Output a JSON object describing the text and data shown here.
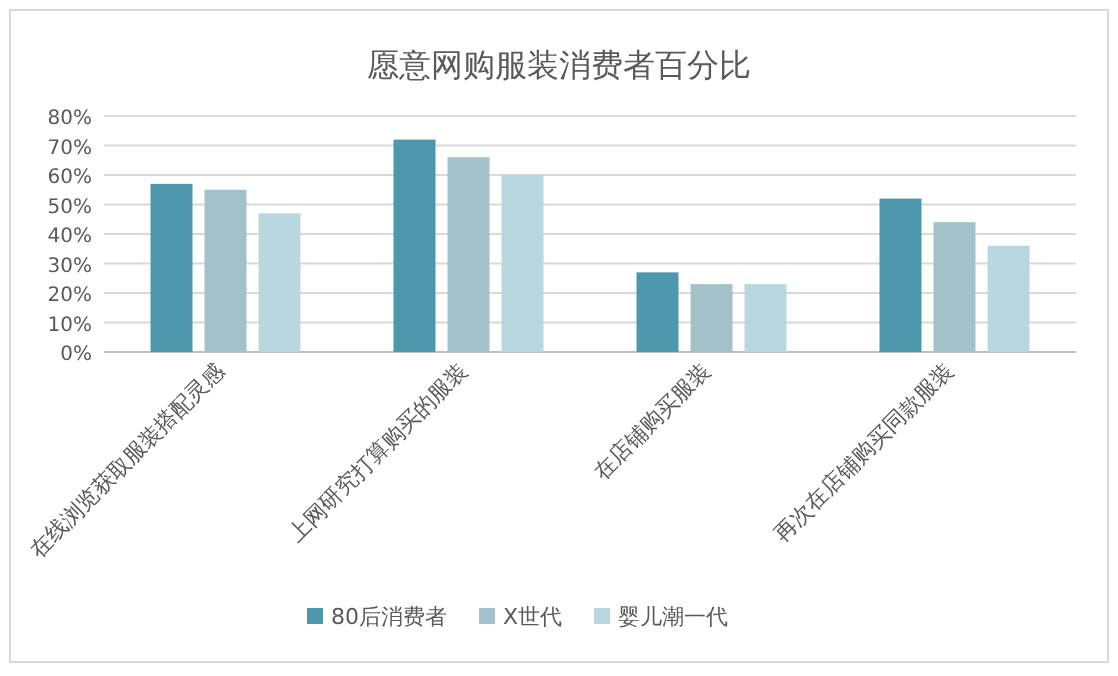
{
  "chart_data": {
    "type": "bar",
    "title": "愿意网购服装消费者百分比",
    "categories": [
      "在线浏览获取服装搭配灵感",
      "上网研究打算购买的服装",
      "在店铺购买服装",
      "再次在店铺购买同款服装"
    ],
    "series": [
      {
        "name": "80后消费者",
        "color": "#4e98ad",
        "values": [
          57,
          72,
          27,
          52
        ]
      },
      {
        "name": "X世代",
        "color": "#a3c1c9",
        "values": [
          55,
          66,
          23,
          44
        ]
      },
      {
        "name": "婴儿潮一代",
        "color": "#b9d7de",
        "values": [
          47,
          60,
          23,
          36
        ]
      }
    ],
    "ylim": [
      0,
      80
    ],
    "yticks": [
      {
        "value": 0,
        "label": "0%"
      },
      {
        "value": 10,
        "label": "10%"
      },
      {
        "value": 20,
        "label": "20%"
      },
      {
        "value": 30,
        "label": "30%"
      },
      {
        "value": 40,
        "label": "40%"
      },
      {
        "value": 50,
        "label": "50%"
      },
      {
        "value": 60,
        "label": "60%"
      },
      {
        "value": 70,
        "label": "70%"
      },
      {
        "value": 80,
        "label": "80%"
      }
    ],
    "grid": "y",
    "legend": "bottom"
  }
}
